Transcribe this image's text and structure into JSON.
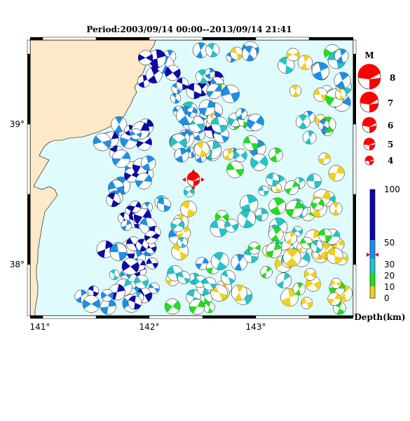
{
  "title": "Period:2003/09/14 00:00--2013/09/14 21:41",
  "map": {
    "lon_ticks": [
      "141°",
      "142°",
      "143°"
    ],
    "lat_ticks": [
      "39°",
      "38°"
    ],
    "land_color": "#fde8c8",
    "sea_color": "#e0fbfb"
  },
  "magnitude_legend": {
    "title": "M",
    "items": [
      "8",
      "7",
      "6",
      "5",
      "4"
    ]
  },
  "depth_legend": {
    "title": "Depth(km)",
    "ticks": [
      "100",
      "50",
      "30",
      "20",
      "10",
      "0"
    ],
    "colors": {
      "deep": "#0a0aa8",
      "mid_deep": "#1e8fe6",
      "mid": "#25c2c8",
      "shallow": "#22dd22",
      "surface": "#f0d020"
    }
  },
  "highlight_color": "#ff0000"
}
